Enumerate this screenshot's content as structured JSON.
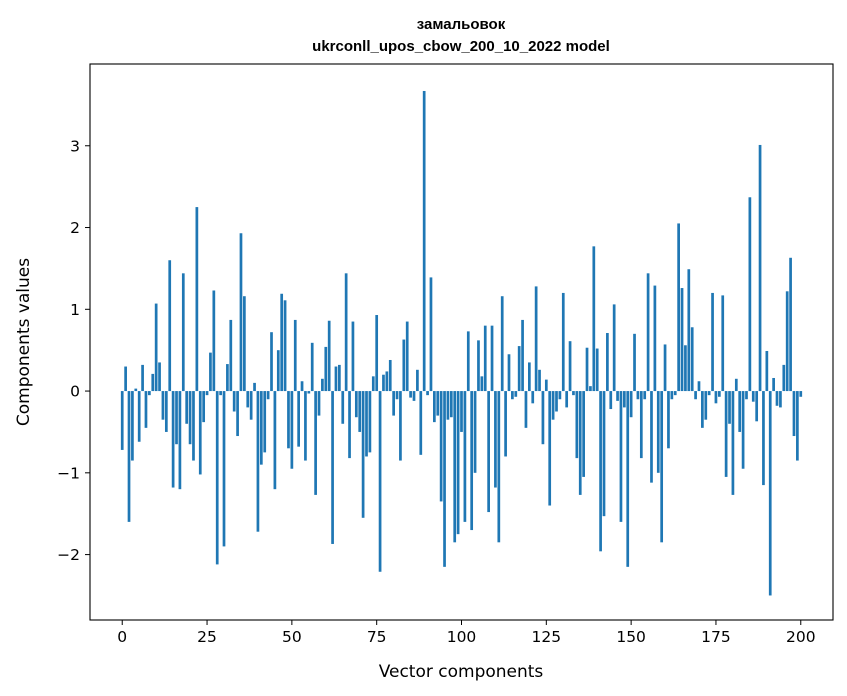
{
  "chart_data": {
    "type": "bar",
    "title": "замальовок",
    "subtitle": "ukrconll_upos_cbow_200_10_2022 model",
    "xlabel": "Vector components",
    "ylabel": "Components values",
    "xlim": [
      -9.5,
      209.5
    ],
    "ylim": [
      -2.8,
      4.0
    ],
    "xticks": [
      0,
      25,
      50,
      75,
      100,
      125,
      150,
      175,
      200
    ],
    "xtick_labels": [
      "0",
      "25",
      "50",
      "75",
      "100",
      "125",
      "150",
      "175",
      "200"
    ],
    "yticks": [
      -2,
      -1,
      0,
      1,
      2,
      3
    ],
    "ytick_labels": [
      "−2",
      "−1",
      "0",
      "1",
      "2",
      "3"
    ],
    "grid": false,
    "bar_color": "#1f77b4",
    "values": [
      -0.72,
      0.3,
      -1.6,
      -0.85,
      0.03,
      -0.62,
      0.32,
      -0.45,
      -0.05,
      0.21,
      1.07,
      0.35,
      -0.35,
      -0.5,
      1.6,
      -1.18,
      -0.65,
      -1.2,
      1.44,
      -0.4,
      -0.65,
      -0.85,
      2.25,
      -1.02,
      -0.38,
      -0.05,
      0.47,
      1.23,
      -2.12,
      -0.05,
      -1.9,
      0.33,
      0.87,
      -0.25,
      -0.55,
      1.93,
      1.16,
      -0.2,
      -0.35,
      0.1,
      -1.72,
      -0.9,
      -0.75,
      -0.1,
      0.72,
      -1.2,
      0.5,
      1.19,
      1.11,
      -0.7,
      -0.95,
      0.87,
      -0.68,
      0.12,
      -0.85,
      -0.03,
      0.59,
      -1.27,
      -0.3,
      0.15,
      0.54,
      0.86,
      -1.87,
      0.3,
      0.32,
      -0.4,
      1.44,
      -0.82,
      0.85,
      -0.32,
      -0.5,
      -1.55,
      -0.8,
      -0.75,
      0.18,
      0.93,
      -2.21,
      0.2,
      0.24,
      0.38,
      -0.3,
      -0.1,
      -0.85,
      0.63,
      0.85,
      -0.08,
      -0.12,
      0.26,
      -0.78,
      3.67,
      -0.05,
      1.39,
      -0.38,
      -0.3,
      -1.35,
      -2.15,
      -0.35,
      -0.32,
      -1.85,
      -1.75,
      -0.5,
      -1.6,
      0.73,
      -1.7,
      -1.0,
      0.62,
      0.18,
      0.8,
      -1.48,
      0.8,
      -1.18,
      -1.85,
      1.16,
      -0.8,
      0.45,
      -0.1,
      -0.07,
      0.55,
      0.87,
      -0.45,
      0.35,
      -0.15,
      1.28,
      0.26,
      -0.65,
      0.14,
      -1.4,
      -0.35,
      -0.25,
      -0.1,
      1.2,
      -0.2,
      0.61,
      -0.05,
      -0.82,
      -1.27,
      -1.05,
      0.53,
      0.06,
      1.77,
      0.52,
      -1.96,
      -1.53,
      0.71,
      -0.22,
      1.06,
      -0.12,
      -1.6,
      -0.2,
      -2.15,
      -0.32,
      0.7,
      -0.1,
      -0.82,
      -0.1,
      1.44,
      -1.12,
      1.29,
      -1.0,
      -1.85,
      0.57,
      -0.7,
      -0.1,
      -0.05,
      2.05,
      1.26,
      0.56,
      1.49,
      0.78,
      -0.1,
      0.12,
      -0.45,
      -0.35,
      -0.05,
      1.2,
      -0.15,
      -0.07,
      1.17,
      -1.05,
      -0.4,
      -1.27,
      0.15,
      -0.5,
      -0.95,
      -0.1,
      2.37,
      -0.13,
      -0.37,
      3.01,
      -1.15,
      0.49,
      -2.5,
      0.16,
      -0.18,
      -0.2,
      0.32,
      1.22,
      1.63,
      -0.55,
      -0.85,
      -0.07
    ]
  }
}
